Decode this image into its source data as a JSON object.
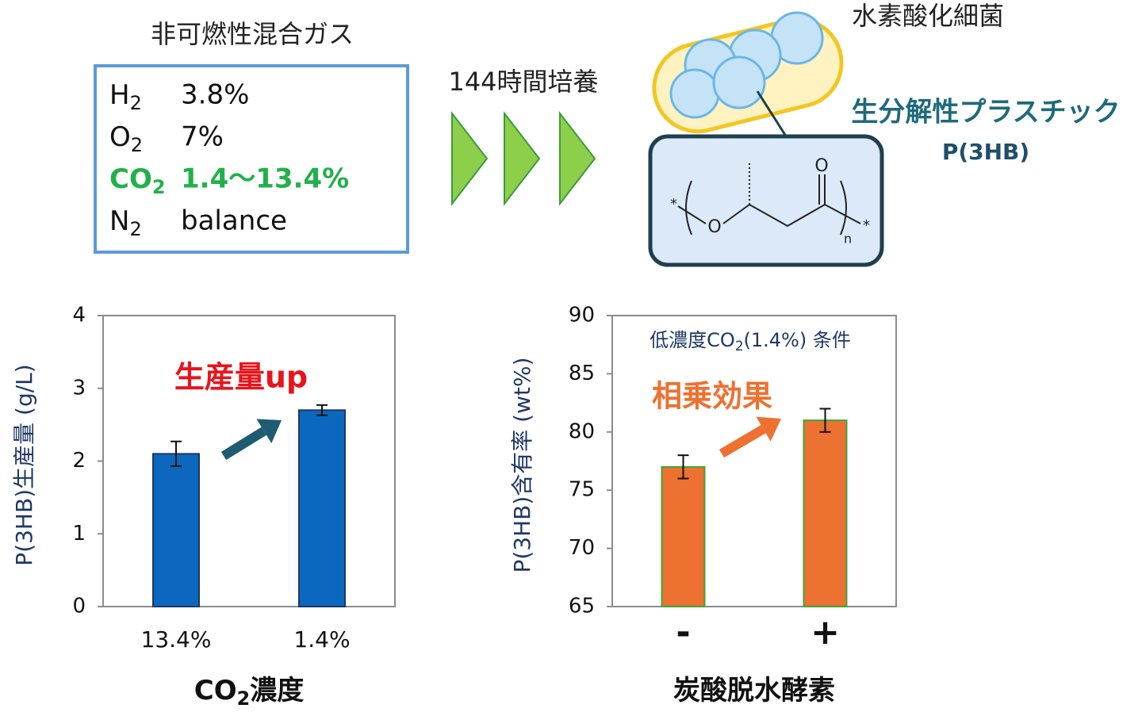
{
  "gas": {
    "title": "非可燃性混合ガス",
    "rows": [
      [
        "H",
        "2",
        "3.8%"
      ],
      [
        "O",
        "2",
        "7%"
      ],
      [
        "CO",
        "2",
        "1.4〜13.4%"
      ],
      [
        "N",
        "2",
        "balance"
      ]
    ]
  },
  "process": "144時間培養",
  "bacteria": "水素酸化細菌",
  "plastic": {
    "title": "生分解性プラスチック",
    "name": "P(3HB)"
  },
  "structure": {
    "atoms": [
      "*",
      "O",
      "O",
      "n",
      "*"
    ]
  },
  "chart_data": [
    {
      "type": "bar",
      "y_label": "P(3HB)生産量 (g/L)",
      "x_label": [
        "CO",
        "2",
        "濃度"
      ],
      "categories": [
        "13.4%",
        "1.4%"
      ],
      "values": [
        2.1,
        2.7
      ],
      "errors": [
        0.17,
        0.07
      ],
      "color": "#0b68be",
      "edge_color": "#1f3864",
      "ylim": [
        0,
        4
      ],
      "yticks": [
        0,
        1,
        2,
        3,
        4
      ],
      "annotation": "生産量up"
    },
    {
      "type": "bar",
      "y_label": "P(3HB)含有率 (wt%)",
      "x_label": [
        "炭酸脱水酵素"
      ],
      "note": [
        "低濃度CO",
        "2",
        "(1.4%) 条件"
      ],
      "categories": [
        "-",
        "+"
      ],
      "values": [
        77,
        81
      ],
      "errors": [
        1,
        1
      ],
      "color": "#ed7131",
      "edge_color": "#3aa83a",
      "ylim": [
        65,
        90
      ],
      "yticks": [
        65,
        70,
        75,
        80,
        85,
        90
      ],
      "annotation": "相乗効果"
    }
  ]
}
